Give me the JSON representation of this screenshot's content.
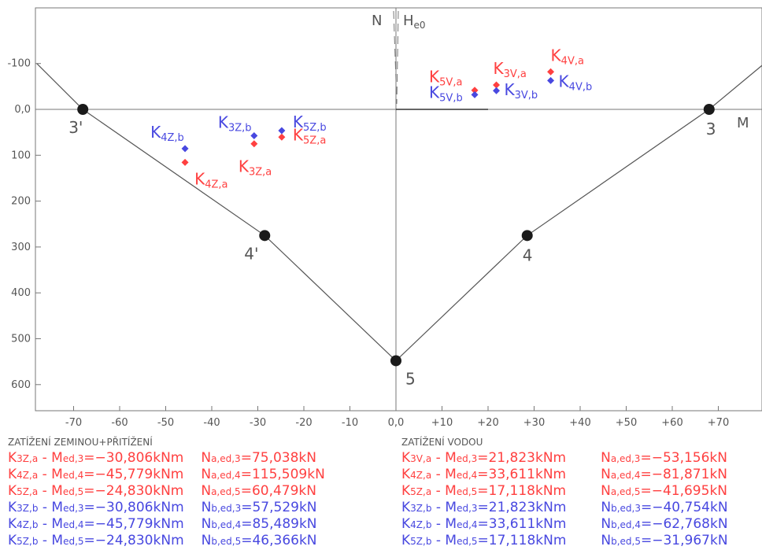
{
  "colors": {
    "red": "#ff4040",
    "blue": "#4848e0",
    "axis": "#777777",
    "line": "#555555",
    "node": "#1a1a1a"
  },
  "chart_data": {
    "type": "scatter",
    "xlabel": "M",
    "ylabel": "N",
    "x_ticks": [
      "-70",
      "-60",
      "-50",
      "-40",
      "-30",
      "-20",
      "-10",
      "0,0",
      "+10",
      "+20",
      "+30",
      "+40",
      "+50",
      "+60",
      "+70"
    ],
    "x_tick_values": [
      -70,
      -60,
      -50,
      -40,
      -30,
      -20,
      -10,
      0,
      10,
      20,
      30,
      40,
      50,
      60,
      70
    ],
    "y_ticks": [
      "-100",
      "0,0",
      "100",
      "200",
      "300",
      "400",
      "500",
      "600"
    ],
    "y_tick_values": [
      -100,
      0,
      100,
      200,
      300,
      400,
      500,
      600
    ],
    "xlim": [
      -78,
      80
    ],
    "ylim": [
      -230,
      665
    ],
    "interaction_lines": [
      {
        "points": [
          [
            -78,
            -100
          ],
          [
            -68,
            0
          ],
          [
            -28.5,
            275
          ],
          [
            0,
            548
          ],
          [
            28.5,
            275
          ],
          [
            68,
            0
          ],
          [
            80,
            -100
          ]
        ]
      }
    ],
    "nodes": [
      {
        "label": "3'",
        "x": -68,
        "y": 0
      },
      {
        "label": "3",
        "x": 68,
        "y": 0
      },
      {
        "label": "4'",
        "x": -28.5,
        "y": 275
      },
      {
        "label": "4",
        "x": 28.5,
        "y": 275
      },
      {
        "label": "5",
        "x": 0,
        "y": 548
      }
    ],
    "top_label": "He0",
    "points": [
      {
        "name": "K4Z,a",
        "main": "K",
        "sub": "4Z,a",
        "color": "red",
        "x": -45.8,
        "y": 115.5
      },
      {
        "name": "K4Z,b",
        "main": "K",
        "sub": "4Z,b",
        "color": "blue",
        "x": -45.8,
        "y": 85.5
      },
      {
        "name": "K3Z,a",
        "main": "K",
        "sub": "3Z,a",
        "color": "red",
        "x": -30.8,
        "y": 75.0
      },
      {
        "name": "K3Z,b",
        "main": "K",
        "sub": "3Z,b",
        "color": "blue",
        "x": -30.8,
        "y": 57.5
      },
      {
        "name": "K5Z,a",
        "main": "K",
        "sub": "5Z,a",
        "color": "red",
        "x": -24.8,
        "y": 60.5
      },
      {
        "name": "K5Z,b",
        "main": "K",
        "sub": "5Z,b",
        "color": "blue",
        "x": -24.8,
        "y": 46.4
      },
      {
        "name": "K5V,a",
        "main": "K",
        "sub": "5V,a",
        "color": "red",
        "x": 17.1,
        "y": -41.7
      },
      {
        "name": "K5V,b",
        "main": "K",
        "sub": "5V,b",
        "color": "blue",
        "x": 17.1,
        "y": -32.0
      },
      {
        "name": "K3V,a",
        "main": "K",
        "sub": "3V,a",
        "color": "red",
        "x": 21.8,
        "y": -53.2
      },
      {
        "name": "K3V,b",
        "main": "K",
        "sub": "3V,b",
        "color": "blue",
        "x": 21.8,
        "y": -40.8
      },
      {
        "name": "K4V,a",
        "main": "K",
        "sub": "4V,a",
        "color": "red",
        "x": 33.6,
        "y": -81.9
      },
      {
        "name": "K4V,b",
        "main": "K",
        "sub": "4V,b",
        "color": "blue",
        "x": 33.6,
        "y": -62.8
      }
    ]
  },
  "legend": {
    "left": {
      "title": "ZATÍŽENÍ ZEMINOU+PŘITÍŽENÍ",
      "rows": [
        {
          "k": "K",
          "ks": "3Z,a",
          "sep": " - ",
          "m": "M",
          "ms": "ed,3",
          "mv": "=−30,806kNm",
          "n": "N",
          "ns": "a,ed,3",
          "nv": "=75,038kN",
          "color": "red"
        },
        {
          "k": "K",
          "ks": "4Z,a",
          "sep": " - ",
          "m": "M",
          "ms": "ed,4",
          "mv": "=−45,779kNm",
          "n": "N",
          "ns": "a,ed,4",
          "nv": "=115,509kN",
          "color": "red"
        },
        {
          "k": "K",
          "ks": "5Z,a",
          "sep": " - ",
          "m": "M",
          "ms": "ed,5",
          "mv": "=−24,830kNm",
          "n": "N",
          "ns": "a,ed,5",
          "nv": "=60,479kN",
          "color": "red"
        },
        {
          "k": "K",
          "ks": "3Z,b",
          "sep": " - ",
          "m": "M",
          "ms": "ed,3",
          "mv": "=−30,806kNm",
          "n": "N",
          "ns": "b,ed,3",
          "nv": "=57,529kN",
          "color": "blue"
        },
        {
          "k": "K",
          "ks": "4Z,b",
          "sep": " - ",
          "m": "M",
          "ms": "ed,4",
          "mv": "=−45,779kNm",
          "n": "N",
          "ns": "b,ed,4",
          "nv": "=85,489kN",
          "color": "blue"
        },
        {
          "k": "K",
          "ks": "5Z,b",
          "sep": " - ",
          "m": "M",
          "ms": "ed,5",
          "mv": "=−24,830kNm",
          "n": "N",
          "ns": "b,ed,5",
          "nv": "=46,366kN",
          "color": "blue"
        }
      ]
    },
    "right": {
      "title": "ZATÍŽENÍ VODOU",
      "rows": [
        {
          "k": "K",
          "ks": "3V,a",
          "sep": " - ",
          "m": "M",
          "ms": "ed,3",
          "mv": "=21,823kNm",
          "n": "N",
          "ns": "a,ed,3",
          "nv": "=−53,156kN",
          "color": "red"
        },
        {
          "k": "K",
          "ks": "4Z,a",
          "sep": " - ",
          "m": "M",
          "ms": "ed,4",
          "mv": "=33,611kNm",
          "n": "N",
          "ns": "a,ed,4",
          "nv": "=−81,871kN",
          "color": "red"
        },
        {
          "k": "K",
          "ks": "5Z,a",
          "sep": " - ",
          "m": "M",
          "ms": "ed,5",
          "mv": "=17,118kNm",
          "n": "N",
          "ns": "a,ed,5",
          "nv": "=−41,695kN",
          "color": "red"
        },
        {
          "k": "K",
          "ks": "3Z,b",
          "sep": " - ",
          "m": "M",
          "ms": "ed,3",
          "mv": "=21,823kNm",
          "n": "N",
          "ns": "b,ed,3",
          "nv": "=−40,754kN",
          "color": "blue"
        },
        {
          "k": "K",
          "ks": "4Z,b",
          "sep": " - ",
          "m": "M",
          "ms": "ed,4",
          "mv": "=33,611kNm",
          "n": "N",
          "ns": "b,ed,4",
          "nv": "=−62,768kN",
          "color": "blue"
        },
        {
          "k": "K",
          "ks": "5Z,b",
          "sep": " - ",
          "m": "M",
          "ms": "ed,5",
          "mv": "=17,118kNm",
          "n": "N",
          "ns": "b,ed,5",
          "nv": "=−31,967kN",
          "color": "blue"
        }
      ]
    }
  }
}
